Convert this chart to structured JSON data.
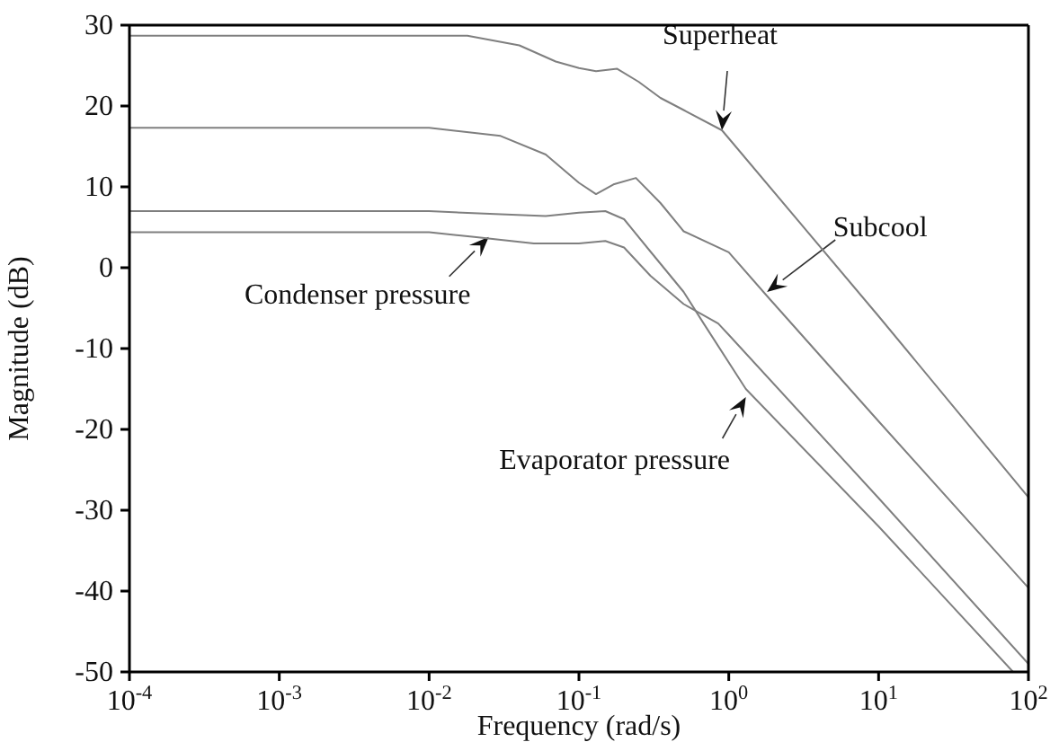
{
  "chart_data": {
    "type": "line",
    "xlabel": "Frequency (rad/s)",
    "ylabel": "Magnitude (dB)",
    "log": "x",
    "grid": false,
    "marker": "none",
    "line_style": "solid",
    "xlim": [
      0.0001,
      100
    ],
    "xticks": [
      {
        "value": 0.0001,
        "label": "10$^{-4}$"
      },
      {
        "value": 0.001,
        "label": "10$^{-3}$"
      },
      {
        "value": 0.01,
        "label": "10$^{-2}$"
      },
      {
        "value": 0.1,
        "label": "10$^{-1}$"
      },
      {
        "value": 1,
        "label": "10$^{0}$"
      },
      {
        "value": 10,
        "label": "10$^{1}$"
      },
      {
        "value": 100,
        "label": "10$^{2}$"
      }
    ],
    "ylim": [
      -50,
      30
    ],
    "yticks": [
      -50,
      -40,
      -30,
      -20,
      -10,
      0,
      10,
      20,
      30
    ],
    "series": [
      {
        "color": "#7f7f7f",
        "x": [
          0.0001,
          0.001,
          0.018,
          0.04,
          0.07,
          0.1,
          0.13,
          0.18,
          0.25,
          0.35,
          0.5,
          0.9,
          1,
          10,
          100
        ],
        "values": [
          28.7,
          28.7,
          28.7,
          27.5,
          25.5,
          24.7,
          24.3,
          24.6,
          23,
          21,
          19.5,
          17,
          16,
          -6,
          -28.4
        ]
      },
      {
        "color": "#7f7f7f",
        "x": [
          0.0001,
          0.001,
          0.01,
          0.03,
          0.06,
          0.1,
          0.13,
          0.17,
          0.24,
          0.35,
          0.5,
          1,
          1.8,
          10,
          100
        ],
        "values": [
          17.3,
          17.3,
          17.3,
          16.3,
          14,
          10.5,
          9.1,
          10.3,
          11.1,
          8,
          4.5,
          1.9,
          -3.5,
          -19,
          -39.6
        ]
      },
      {
        "color": "#7f7f7f",
        "x": [
          0.0001,
          0.001,
          0.01,
          0.03,
          0.06,
          0.1,
          0.15,
          0.2,
          0.3,
          0.5,
          0.68,
          1.3,
          10,
          79
        ],
        "values": [
          7,
          7,
          7,
          6.6,
          6.4,
          6.8,
          7,
          6,
          2,
          -3,
          -6.9,
          -15,
          -32,
          -50
        ]
      },
      {
        "color": "#7f7f7f",
        "x": [
          0.0001,
          0.001,
          0.01,
          0.02,
          0.05,
          0.1,
          0.15,
          0.2,
          0.3,
          0.5,
          0.85,
          1,
          10,
          100
        ],
        "values": [
          4.4,
          4.4,
          4.4,
          3.8,
          3,
          3,
          3.3,
          2.5,
          -1,
          -4.5,
          -6.9,
          -8.3,
          -28.5,
          -49
        ]
      }
    ],
    "annotations": [
      {
        "text": "Superheat",
        "x": 0.9,
        "y": 17
      },
      {
        "text": "Subcool",
        "x": 1.8,
        "y": -3
      },
      {
        "text": "Condenser pressure",
        "x": 0.025,
        "y": 3.8
      },
      {
        "text": "Evaporator pressure",
        "x": 1.3,
        "y": -16
      }
    ]
  }
}
